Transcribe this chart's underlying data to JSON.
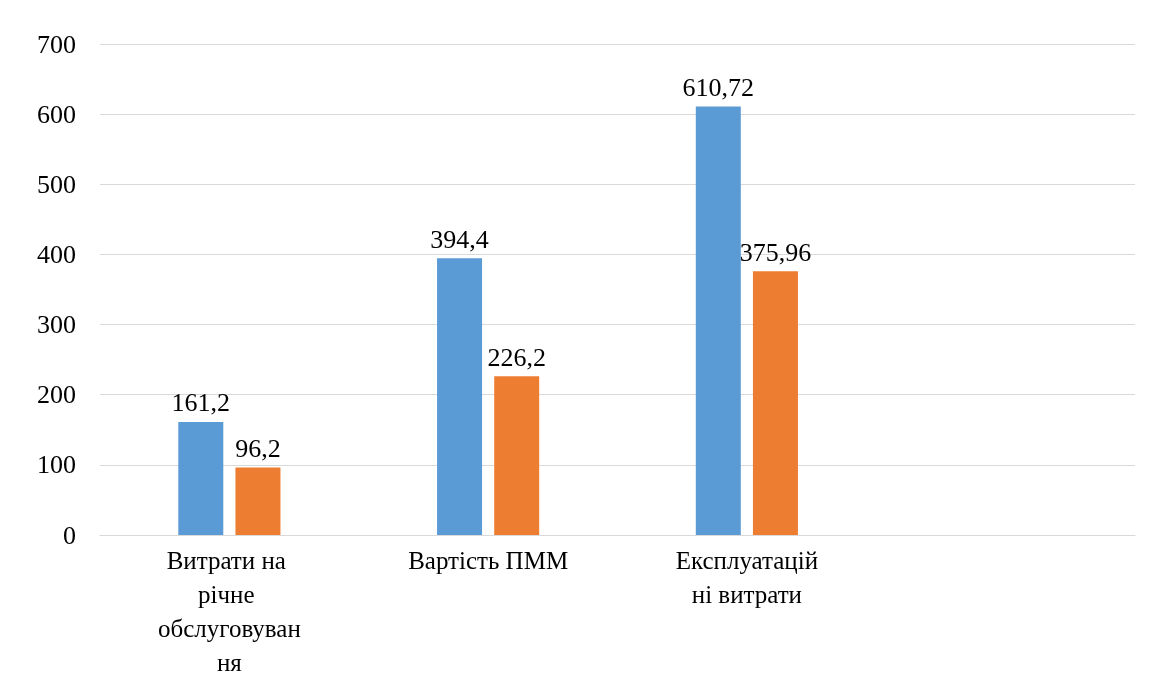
{
  "chart_data": {
    "type": "bar",
    "categories": [
      "Витрати на річне обслуговування",
      "Вартість ПММ",
      "Експлуатаційні витрати",
      null
    ],
    "series": [
      {
        "color": "#5b9bd5",
        "values": [
          161.2,
          394.4,
          610.72,
          null
        ],
        "value_labels": [
          "161,2",
          "394,4",
          "610,72",
          null
        ]
      },
      {
        "color": "#ed7d31",
        "values": [
          96.2,
          226.2,
          375.96,
          null
        ],
        "value_labels": [
          "96,2",
          "226,2",
          "375,96",
          null
        ]
      }
    ],
    "ylim": [
      0,
      700
    ],
    "yticks": [
      0,
      100,
      200,
      300,
      400,
      500,
      600,
      700
    ],
    "grid": "y"
  }
}
